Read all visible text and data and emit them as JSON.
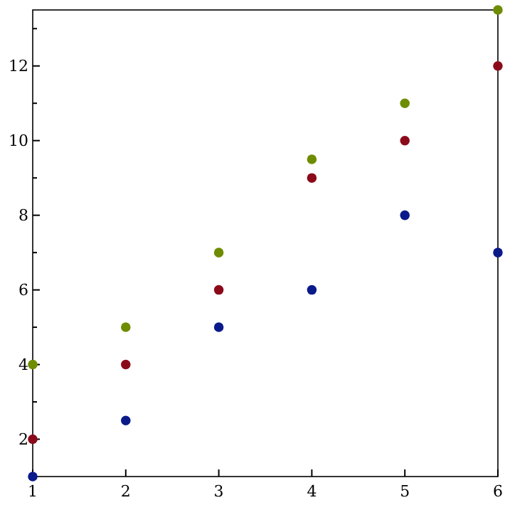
{
  "chart_data": {
    "type": "scatter",
    "x": [
      1,
      2,
      3,
      4,
      5,
      6
    ],
    "series": [
      {
        "color": "#6e8c00",
        "values": [
          4,
          5,
          7,
          9.5,
          11,
          13.5
        ]
      },
      {
        "color": "#8b0a1a",
        "values": [
          2,
          4,
          6,
          9,
          10,
          12
        ]
      },
      {
        "color": "#0a1a8a",
        "values": [
          1,
          2.5,
          5,
          6,
          8,
          7
        ]
      }
    ],
    "xlim": [
      1,
      6
    ],
    "ylim": [
      1,
      13.5
    ],
    "xticks": [
      1,
      2,
      3,
      4,
      5,
      6
    ],
    "yticks": [
      2,
      4,
      6,
      8,
      10,
      12,
      {
        "value": 3,
        "label": null
      },
      {
        "value": 5,
        "label": null
      },
      {
        "value": 7,
        "label": null
      },
      {
        "value": 9,
        "label": null
      },
      {
        "value": 11,
        "label": null
      },
      {
        "value": 13,
        "label": null
      }
    ],
    "marker": "circle",
    "grid": false
  }
}
